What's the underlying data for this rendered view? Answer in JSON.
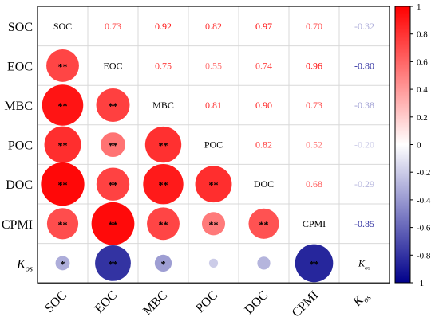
{
  "chart_data": {
    "type": "heatmap",
    "variables": [
      "SOC",
      "EOC",
      "MBC",
      "POC",
      "DOC",
      "CPMI",
      "Kos"
    ],
    "labels": [
      {
        "main": "SOC",
        "sub": ""
      },
      {
        "main": "EOC",
        "sub": ""
      },
      {
        "main": "MBC",
        "sub": ""
      },
      {
        "main": "POC",
        "sub": ""
      },
      {
        "main": "DOC",
        "sub": ""
      },
      {
        "main": "CPMI",
        "sub": ""
      },
      {
        "main": "K",
        "sub": "os"
      }
    ],
    "matrix": [
      [
        1,
        0.73,
        0.92,
        0.82,
        0.97,
        0.7,
        -0.32
      ],
      [
        0.73,
        1,
        0.75,
        0.55,
        0.74,
        0.96,
        -0.8
      ],
      [
        0.92,
        0.75,
        1,
        0.81,
        0.9,
        0.73,
        -0.38
      ],
      [
        0.82,
        0.55,
        0.81,
        1,
        0.82,
        0.52,
        -0.2
      ],
      [
        0.97,
        0.74,
        0.9,
        0.82,
        1,
        0.68,
        -0.29
      ],
      [
        0.7,
        0.96,
        0.73,
        0.52,
        0.68,
        1,
        -0.85
      ],
      [
        -0.32,
        -0.8,
        -0.38,
        -0.2,
        -0.29,
        -0.85,
        1
      ]
    ],
    "upper_text": [
      [
        "",
        "0.73",
        "0.92",
        "0.82",
        "0.97",
        "0.70",
        "-0.32"
      ],
      [
        "",
        "",
        "0.75",
        "0.55",
        "0.74",
        "0.96",
        "-0.80"
      ],
      [
        "",
        "",
        "",
        "0.81",
        "0.90",
        "0.73",
        "-0.38"
      ],
      [
        "",
        "",
        "",
        "",
        "0.82",
        "0.52",
        "-0.20"
      ],
      [
        "",
        "",
        "",
        "",
        "",
        "0.68",
        "-0.29"
      ],
      [
        "",
        "",
        "",
        "",
        "",
        "",
        "-0.85"
      ],
      [
        "",
        "",
        "",
        "",
        "",
        "",
        ""
      ]
    ],
    "significance": [
      [
        "",
        "",
        "",
        "",
        "",
        "",
        ""
      ],
      [
        "**",
        "",
        "",
        "",
        "",
        "",
        ""
      ],
      [
        "**",
        "**",
        "",
        "",
        "",
        "",
        ""
      ],
      [
        "**",
        "**",
        "**",
        "",
        "",
        "",
        ""
      ],
      [
        "**",
        "**",
        "**",
        "**",
        "",
        "",
        ""
      ],
      [
        "**",
        "**",
        "**",
        "**",
        "**",
        "",
        ""
      ],
      [
        "*",
        "**",
        "*",
        "",
        "",
        "**",
        ""
      ]
    ],
    "colorbar": {
      "range": [
        -1,
        1
      ],
      "ticks": [
        1,
        0.8,
        0.6,
        0.4,
        0.2,
        0,
        -0.2,
        -0.4,
        -0.6,
        -0.8,
        -1
      ],
      "tick_labels": [
        "1",
        "0.8",
        "0.6",
        "0.4",
        "0.2",
        "0",
        "-0.2",
        "-0.4",
        "-0.6",
        "-0.8",
        "-1"
      ],
      "color_max": "#ff0000",
      "color_mid": "#ffffff",
      "color_min": "#00008b"
    },
    "grid": true,
    "legend_placement": "right",
    "title": "",
    "xlabel": "",
    "ylabel": ""
  }
}
